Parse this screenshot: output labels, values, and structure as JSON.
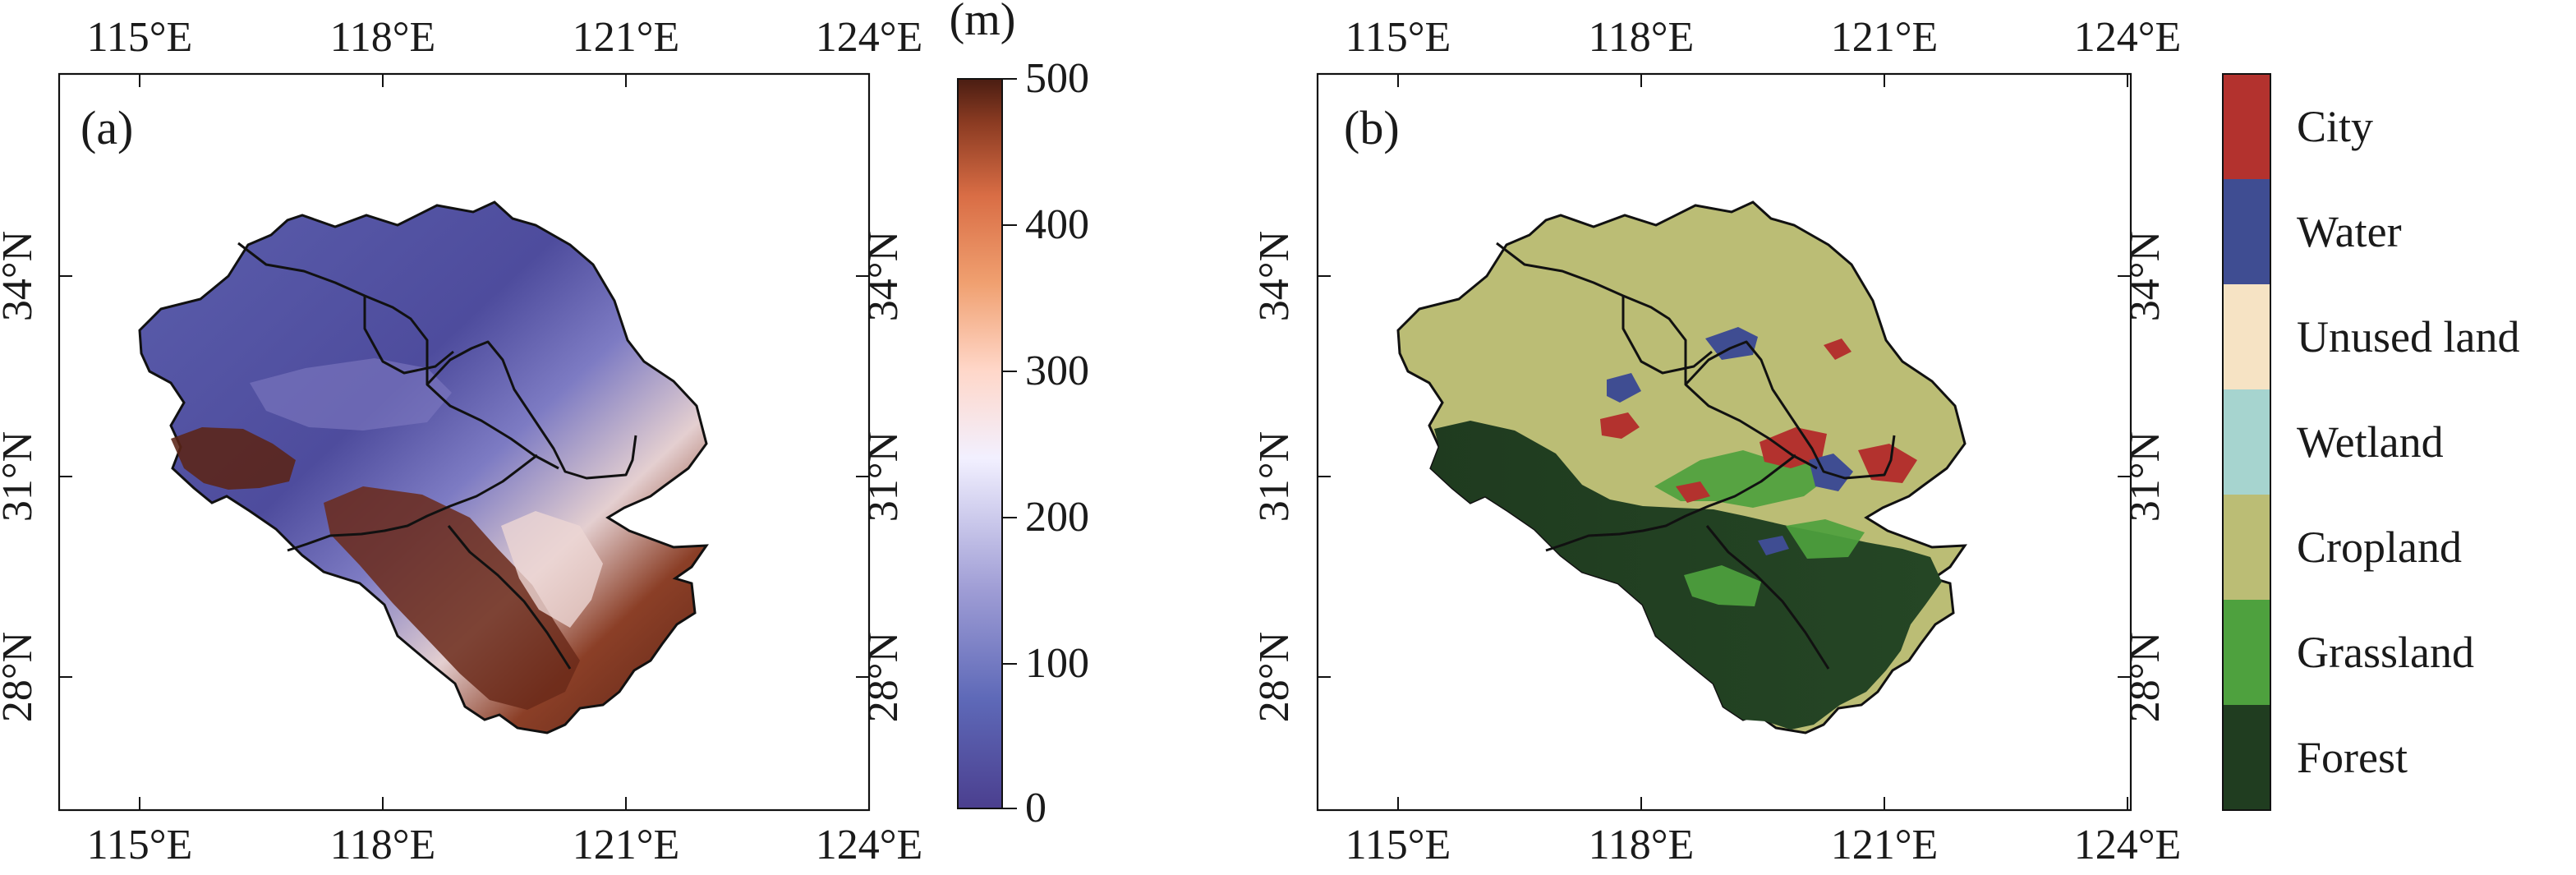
{
  "figure": {
    "panel_a": {
      "label": "(a)",
      "top_ticks": [
        "115°E",
        "118°E",
        "121°E",
        "124°E"
      ],
      "bottom_ticks": [
        "115°E",
        "118°E",
        "121°E",
        "124°E"
      ],
      "left_ticks": [
        "34°N",
        "31°N",
        "28°N"
      ],
      "right_ticks": [
        "34°N",
        "31°N",
        "28°N"
      ]
    },
    "panel_b": {
      "label": "(b)",
      "top_ticks": [
        "115°E",
        "118°E",
        "121°E",
        "124°E"
      ],
      "bottom_ticks": [
        "115°E",
        "118°E",
        "121°E",
        "124°E"
      ],
      "left_ticks": [
        "34°N",
        "31°N",
        "28°N"
      ],
      "right_ticks": [
        "34°N",
        "31°N",
        "28°N"
      ]
    },
    "colorbar": {
      "unit": "(m)",
      "ticks": [
        "500",
        "400",
        "300",
        "200",
        "100",
        "0"
      ],
      "colors": [
        "#4b3f8f",
        "#5e69b8",
        "#9f9dd5",
        "#f2f0ff",
        "#ffd7c9",
        "#f0a070",
        "#d96d45",
        "#8b3b22",
        "#4a1d12"
      ]
    },
    "land_use_legend": {
      "items": [
        {
          "name": "City",
          "color": "#b3322e"
        },
        {
          "name": "Water",
          "color": "#3f4d92"
        },
        {
          "name": "Unused land",
          "color": "#f6e3c4"
        },
        {
          "name": "Wetland",
          "color": "#a6d4cf"
        },
        {
          "name": "Cropland",
          "color": "#bbbd75"
        },
        {
          "name": "Grassland",
          "color": "#4ea13e"
        },
        {
          "name": "Forest",
          "color": "#203d20"
        }
      ]
    }
  }
}
